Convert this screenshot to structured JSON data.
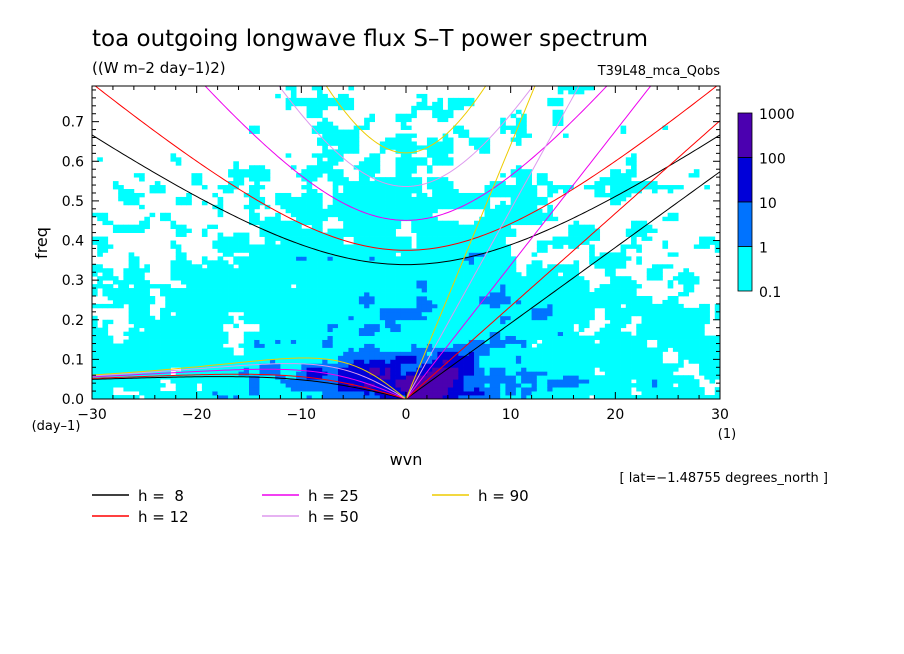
{
  "chart_data": {
    "type": "heatmap",
    "title": "toa outgoing longwave flux S–T power spectrum",
    "subtitle": "((W m–2 day–1)2)",
    "run_label": "T39L48_mca_Qobs",
    "xlabel": "wvn",
    "x_unit": "(1)",
    "ylabel": "freq",
    "y_unit": "(day–1)",
    "xlim": [
      -30,
      30
    ],
    "ylim": [
      0,
      0.79
    ],
    "x_ticks": [
      "−30",
      "−20",
      "−10",
      "0",
      "10",
      "20",
      "30"
    ],
    "y_ticks": [
      "0.0",
      "0.1",
      "0.2",
      "0.3",
      "0.4",
      "0.5",
      "0.6",
      "0.7"
    ],
    "colorbar": {
      "labels": [
        "1000",
        "100",
        "10",
        "1",
        "0.1"
      ],
      "levels": [
        0.1,
        1,
        10,
        100,
        1000
      ],
      "colors": [
        "#00ffff",
        "#0073ff",
        "#0000d9",
        "#4b00b0"
      ]
    },
    "annotation": "[ lat=−1.48755 degrees_north ]",
    "dispersion_curves": [
      {
        "label": "h =  8",
        "h": 8,
        "color": "#000000"
      },
      {
        "label": "h = 12",
        "h": 12,
        "color": "#ff0000"
      },
      {
        "label": "h = 25",
        "h": 25,
        "color": "#ee00ee"
      },
      {
        "label": "h = 50",
        "h": 50,
        "color": "#dd99ee"
      },
      {
        "label": "h = 90",
        "h": 90,
        "color": "#eecc00"
      }
    ]
  }
}
